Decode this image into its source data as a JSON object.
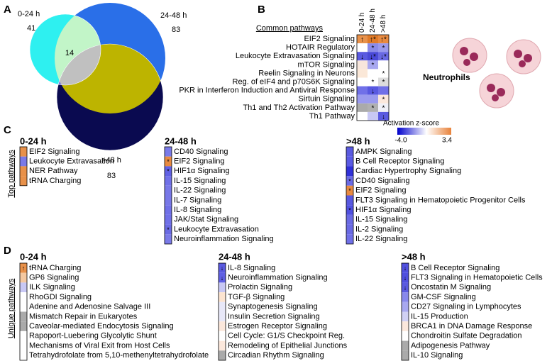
{
  "panel_a": {
    "label": "A",
    "intersection": "14",
    "sets": [
      {
        "name": "0-24 h",
        "count": "41"
      },
      {
        "name": "24-48 h",
        "count": "83"
      },
      {
        "name": ">48 h",
        "count": "83"
      }
    ]
  },
  "panel_b": {
    "label": "B",
    "heading": "Common pathways",
    "columns": [
      "0-24 h",
      "24-48 h",
      ">48 h"
    ],
    "rows": [
      {
        "name": "EIF2 Signaling",
        "colors": [
          "#e8914a",
          "#e07a28",
          "#e88a40"
        ],
        "marks": [
          "↑",
          "↑*",
          "↑*"
        ]
      },
      {
        "name": "HOTAIR Regulatory",
        "colors": [
          "#ffffff",
          "#8a8ae8",
          "#9a9aee"
        ],
        "marks": [
          "",
          "*",
          "*"
        ]
      },
      {
        "name": "Leukocyte Extravasation Signaling",
        "colors": [
          "#5a5ae0",
          "#4a4ad8",
          "#6a6ae4"
        ],
        "marks": [
          "↓",
          "↓*",
          "↓*"
        ]
      },
      {
        "name": "mTOR Signaling",
        "colors": [
          "#f7e6dc",
          "#a8a8f0",
          "#ffffff"
        ],
        "marks": [
          "",
          "*",
          ""
        ]
      },
      {
        "name": "Reelin Signaling in Neurons",
        "colors": [
          "#fbe8d8",
          "#ffffff",
          "#ffffff"
        ],
        "marks": [
          "",
          "",
          "*"
        ]
      },
      {
        "name": "Reg. of eIF4 and p70S6K Signaling",
        "colors": [
          "#ffffff",
          "#ffffff",
          "#dddddd"
        ],
        "marks": [
          "",
          "*",
          "*"
        ]
      },
      {
        "name": "PKR in Interferon Induction and Antiviral Response",
        "colors": [
          "#7070e8",
          "#5858e0",
          "#7070e8"
        ],
        "marks": [
          "",
          "↓",
          ""
        ]
      },
      {
        "name": "Sirtuin Signaling",
        "colors": [
          "#9a9aee",
          "#9a9aee",
          "#fce8dc"
        ],
        "marks": [
          "",
          "",
          "*"
        ]
      },
      {
        "name": "Th1 and Th2 Activation Pathway",
        "colors": [
          "#aaaaaa",
          "#b0b0b0",
          "#f0f0f8"
        ],
        "marks": [
          "",
          "*",
          "*"
        ]
      },
      {
        "name": "Th1 Pathway",
        "colors": [
          "#ffffff",
          "#c8c8f4",
          "#5a5ae0"
        ],
        "marks": [
          "",
          "",
          "↓"
        ]
      }
    ],
    "legend": {
      "title": "Activation z-score",
      "min_label": "-4.0",
      "max_label": "3.4",
      "min_color": "#0000cc",
      "max_color": "#e8823a"
    },
    "image_label": "Neutrophils"
  },
  "panel_c": {
    "label": "C",
    "side_label": "Top pathways",
    "groups": [
      {
        "title": "0-24 h",
        "items": [
          {
            "name": "EIF2 Signaling",
            "color": "#e8914a",
            "mark": ""
          },
          {
            "name": "Leukocyte Extravasation",
            "color": "#7a7ae8",
            "mark": ""
          },
          {
            "name": "NER Pathway",
            "color": "#e8914a",
            "mark": ""
          },
          {
            "name": "tRNA Charging",
            "color": "#e8914a",
            "mark": ""
          }
        ]
      },
      {
        "title": "24-48 h",
        "items": [
          {
            "name": "CD40 Signaling",
            "color": "#7a7ae8",
            "mark": ""
          },
          {
            "name": "EIF2 Signaling",
            "color": "#e88a40",
            "mark": "*"
          },
          {
            "name": "HIF1α Signaling",
            "color": "#6060e4",
            "mark": "*"
          },
          {
            "name": "IL-15 Signaling",
            "color": "#7070e8",
            "mark": ""
          },
          {
            "name": "IL-22 Signaling",
            "color": "#7878e8",
            "mark": ""
          },
          {
            "name": "IL-7 Signaling",
            "color": "#7878e8",
            "mark": ""
          },
          {
            "name": "IL-8 Signaling",
            "color": "#7070e8",
            "mark": ""
          },
          {
            "name": "JAK/Stat Signaling",
            "color": "#7070e8",
            "mark": ""
          },
          {
            "name": "Leukocyte Extravasation",
            "color": "#6a6ae4",
            "mark": "*"
          },
          {
            "name": "Neuroinflammation Signaling",
            "color": "#7a7ae8",
            "mark": ""
          }
        ]
      },
      {
        "title": ">48 h",
        "items": [
          {
            "name": "AMPK Signaling",
            "color": "#5a5ae0",
            "mark": ""
          },
          {
            "name": "B Cell Receptor Signaling",
            "color": "#5a5ae4",
            "mark": ""
          },
          {
            "name": "Cardiac Hypertrophy Signaling",
            "color": "#3030d8",
            "mark": ""
          },
          {
            "name": "CD40 Signaling",
            "color": "#6a6ae4",
            "mark": "*"
          },
          {
            "name": "EIF2 Signaling",
            "color": "#e88a40",
            "mark": "*"
          },
          {
            "name": "FLT3 Signaling in Hematopoietic Progenitor Cells",
            "color": "#5858e0",
            "mark": ""
          },
          {
            "name": "HIF1α Signaling",
            "color": "#5050e0",
            "mark": "*"
          },
          {
            "name": "IL-15 Signaling",
            "color": "#6a6ae4",
            "mark": ""
          },
          {
            "name": "IL-2 Signaling",
            "color": "#6a6ae4",
            "mark": ""
          },
          {
            "name": "IL-22 Signaling",
            "color": "#7070e8",
            "mark": ""
          }
        ]
      }
    ]
  },
  "panel_d": {
    "label": "D",
    "side_label": "Unique pathways",
    "groups": [
      {
        "title": "0-24 h",
        "items": [
          {
            "name": "tRNA Charging",
            "color": "#e8914a",
            "mark": "↑"
          },
          {
            "name": "GP6 Signaling",
            "color": "#f4c8a0",
            "mark": ""
          },
          {
            "name": "ILK Signaling",
            "color": "#c8c8f4",
            "mark": ""
          },
          {
            "name": "RhoGDI Signaling",
            "color": "#ffffff",
            "mark": ""
          },
          {
            "name": "Adenine and Adenosine Salvage III",
            "color": "#ffffff",
            "mark": ""
          },
          {
            "name": "Mismatch Repair in Eukaryotes",
            "color": "#aaaaaa",
            "mark": ""
          },
          {
            "name": "Caveolar-mediated Endocytosis Signaling",
            "color": "#aaaaaa",
            "mark": ""
          },
          {
            "name": "Rapoport-Luebering Glycolytic Shunt",
            "color": "#ffffff",
            "mark": ""
          },
          {
            "name": "Mechanisms of Viral Exit from Host Cells",
            "color": "#ffffff",
            "mark": ""
          },
          {
            "name": "Tetrahydrofolate from 5,10-methenyltetrahydrofolate",
            "color": "#ffffff",
            "mark": ""
          }
        ]
      },
      {
        "title": "24-48 h",
        "items": [
          {
            "name": "IL-8 Signaling",
            "color": "#5a5ae0",
            "mark": "↓"
          },
          {
            "name": "Neuroinflammation Signaling",
            "color": "#6060e4",
            "mark": "↓"
          },
          {
            "name": "Prolactin Signaling",
            "color": "#c8c8f4",
            "mark": ""
          },
          {
            "name": "TGF-β Signaling",
            "color": "#fce4d0",
            "mark": ""
          },
          {
            "name": "Synaptogenesis Signaling",
            "color": "#e8e8f8",
            "mark": ""
          },
          {
            "name": "Insulin Secretion Signaling",
            "color": "#e8e8f8",
            "mark": ""
          },
          {
            "name": "Estrogen Receptor Signaling",
            "color": "#fce8dc",
            "mark": ""
          },
          {
            "name": "Cell Cycle: G1/S Checkpoint Reg.",
            "color": "#ffffff",
            "mark": ""
          },
          {
            "name": "Remodeling of Epithelial Junctions",
            "color": "#fce8dc",
            "mark": ""
          },
          {
            "name": "Circadian Rhythm Signaling",
            "color": "#aaaaaa",
            "mark": ""
          }
        ]
      },
      {
        "title": ">48 h",
        "items": [
          {
            "name": "B Cell Receptor Signaling",
            "color": "#5050e0",
            "mark": "↓"
          },
          {
            "name": "FLT3 Signaling in Hematopoietic Cells",
            "color": "#5050e0",
            "mark": "↓"
          },
          {
            "name": "Oncostatin M Signaling",
            "color": "#5a5ae0",
            "mark": "↓"
          },
          {
            "name": "GM-CSF Signaling",
            "color": "#8888ec",
            "mark": ""
          },
          {
            "name": "CD27 Signaling in Lymphocytes",
            "color": "#a8a8f0",
            "mark": ""
          },
          {
            "name": "IL-15 Production",
            "color": "#d0d0f4",
            "mark": ""
          },
          {
            "name": "BRCA1 in DNA Damage Response",
            "color": "#fce8dc",
            "mark": ""
          },
          {
            "name": "Chondroitin Sulfate Degradation",
            "color": "#ffffff",
            "mark": ""
          },
          {
            "name": "Adipogenesis Pathway",
            "color": "#aaaaaa",
            "mark": ""
          },
          {
            "name": "IL-10 Signaling",
            "color": "#aaaaaa",
            "mark": ""
          }
        ]
      }
    ]
  }
}
